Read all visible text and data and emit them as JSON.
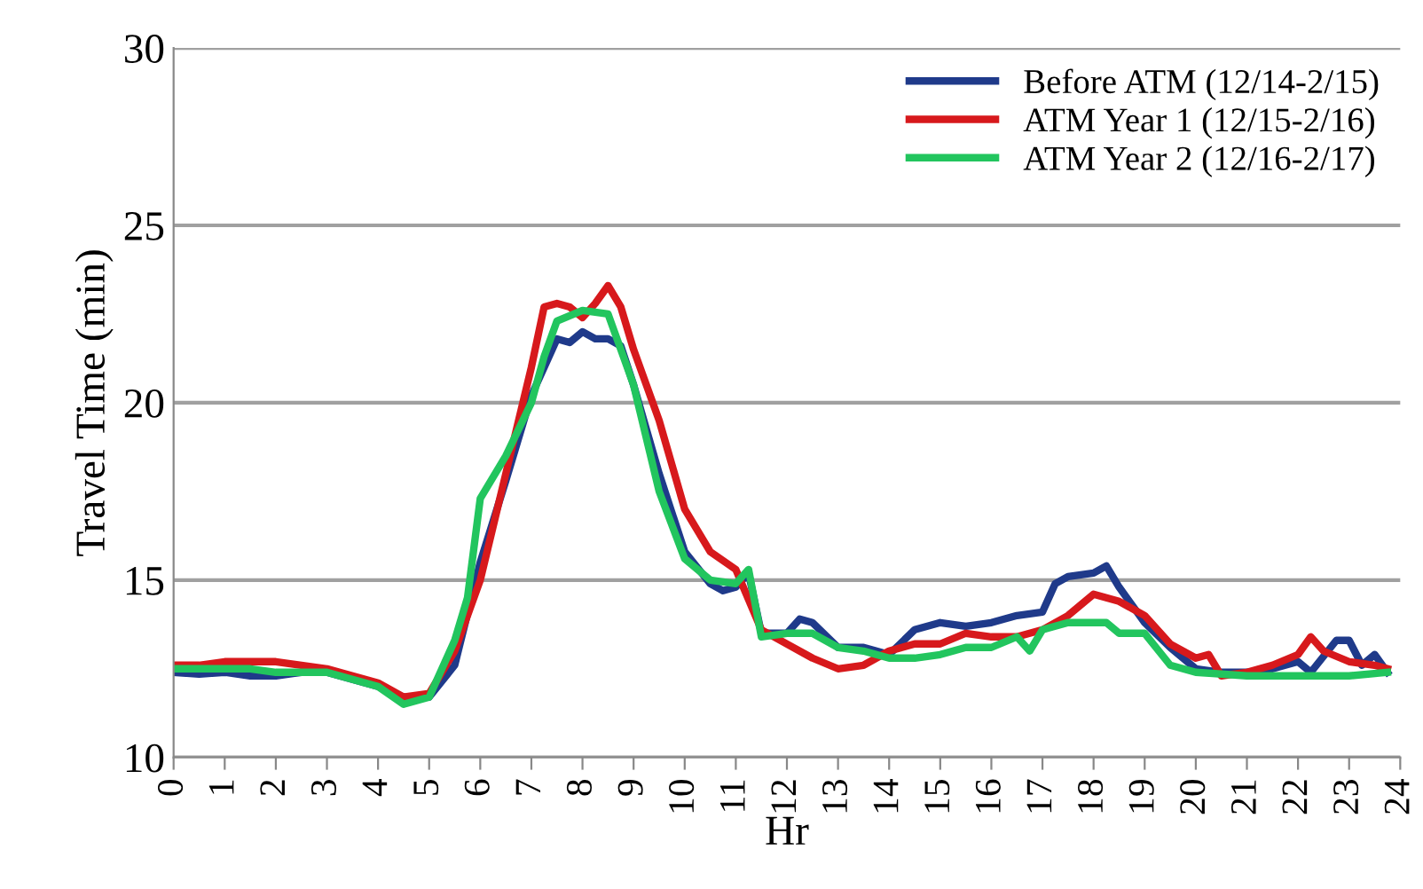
{
  "chart_data": {
    "type": "line",
    "xlabel": "Hr",
    "ylabel": "Travel Time (min)",
    "xlim": [
      0,
      24
    ],
    "xticks": [
      0,
      1,
      2,
      3,
      4,
      5,
      6,
      7,
      8,
      9,
      10,
      11,
      12,
      13,
      14,
      15,
      16,
      17,
      18,
      19,
      20,
      21,
      22,
      23,
      24
    ],
    "ylim": [
      10,
      30
    ],
    "yticks": [
      10,
      15,
      20,
      25,
      30
    ],
    "grid": "y",
    "legend": "top right",
    "marker": "none",
    "line_style": "solid",
    "series": [
      {
        "name": "Before ATM (12/14-2/15)",
        "color": "#1f3a8a",
        "x": [
          0,
          0.5,
          1,
          1.5,
          2,
          2.5,
          3,
          3.5,
          4,
          4.5,
          5,
          5.5,
          6,
          6.5,
          7,
          7.25,
          7.5,
          7.75,
          8,
          8.25,
          8.5,
          8.75,
          9,
          9.5,
          10,
          10.5,
          10.75,
          11,
          11.25,
          11.5,
          12,
          12.25,
          12.5,
          13,
          13.5,
          14,
          14.5,
          15,
          15.5,
          16,
          16.5,
          17,
          17.25,
          17.5,
          18,
          18.25,
          18.5,
          19,
          19.5,
          20,
          20.5,
          21,
          21.5,
          22,
          22.25,
          22.75,
          23,
          23.25,
          23.5,
          23.75
        ],
        "values": [
          12.4,
          12.35,
          12.4,
          12.3,
          12.3,
          12.4,
          12.4,
          12.2,
          12.0,
          11.7,
          11.7,
          12.6,
          15.5,
          17.8,
          20.2,
          21.0,
          21.8,
          21.7,
          22.0,
          21.8,
          21.8,
          21.6,
          20.5,
          18.0,
          15.8,
          14.9,
          14.7,
          14.8,
          15.2,
          13.5,
          13.5,
          13.9,
          13.8,
          13.1,
          13.1,
          12.9,
          13.6,
          13.8,
          13.7,
          13.8,
          14.0,
          14.1,
          14.9,
          15.1,
          15.2,
          15.4,
          14.8,
          13.8,
          13.1,
          12.5,
          12.4,
          12.4,
          12.5,
          12.7,
          12.4,
          13.3,
          13.3,
          12.6,
          12.9,
          12.4
        ]
      },
      {
        "name": "ATM Year 1 (12/15-2/16)",
        "color": "#d7191c",
        "x": [
          0,
          0.5,
          1,
          1.5,
          2,
          2.5,
          3,
          3.5,
          4,
          4.5,
          5,
          5.5,
          6,
          6.5,
          7,
          7.25,
          7.5,
          7.75,
          8,
          8.25,
          8.5,
          8.75,
          9,
          9.5,
          10,
          10.5,
          11,
          11.5,
          12,
          12.5,
          13,
          13.5,
          14,
          14.5,
          15,
          15.5,
          16,
          16.5,
          17,
          17.5,
          18,
          18.5,
          19,
          19.5,
          20,
          20.25,
          20.5,
          21,
          21.5,
          22,
          22.25,
          22.5,
          23,
          23.5,
          23.75
        ],
        "values": [
          12.6,
          12.6,
          12.7,
          12.7,
          12.7,
          12.6,
          12.5,
          12.3,
          12.1,
          11.7,
          11.8,
          13.0,
          15.0,
          18.0,
          21.0,
          22.7,
          22.8,
          22.7,
          22.4,
          22.8,
          23.3,
          22.7,
          21.5,
          19.5,
          17.0,
          15.8,
          15.3,
          13.6,
          13.2,
          12.8,
          12.5,
          12.6,
          13.0,
          13.2,
          13.2,
          13.5,
          13.4,
          13.4,
          13.6,
          14.0,
          14.6,
          14.4,
          14.0,
          13.2,
          12.8,
          12.9,
          12.3,
          12.4,
          12.6,
          12.9,
          13.4,
          13.0,
          12.7,
          12.6,
          12.5
        ]
      },
      {
        "name": "ATM Year 2 (12/16-2/17)",
        "color": "#22c55e",
        "x": [
          0,
          0.5,
          1,
          1.5,
          2,
          2.5,
          3,
          3.5,
          4,
          4.5,
          5,
          5.5,
          5.75,
          6,
          6.5,
          7,
          7.25,
          7.5,
          8,
          8.5,
          9,
          9.5,
          10,
          10.5,
          11,
          11.25,
          11.5,
          12,
          12.5,
          13,
          13.5,
          14,
          14.5,
          15,
          15.5,
          16,
          16.5,
          16.75,
          17,
          17.5,
          18,
          18.25,
          18.5,
          19,
          19.5,
          20,
          21,
          22,
          23,
          23.75
        ],
        "values": [
          12.5,
          12.5,
          12.5,
          12.5,
          12.4,
          12.4,
          12.4,
          12.2,
          12.0,
          11.5,
          11.7,
          13.3,
          14.5,
          17.3,
          18.5,
          20.0,
          21.3,
          22.3,
          22.6,
          22.5,
          20.5,
          17.5,
          15.6,
          15.0,
          14.9,
          15.3,
          13.4,
          13.5,
          13.5,
          13.1,
          13.0,
          12.8,
          12.8,
          12.9,
          13.1,
          13.1,
          13.4,
          13.0,
          13.6,
          13.8,
          13.8,
          13.8,
          13.5,
          13.5,
          12.6,
          12.4,
          12.3,
          12.3,
          12.3,
          12.4
        ]
      }
    ]
  }
}
